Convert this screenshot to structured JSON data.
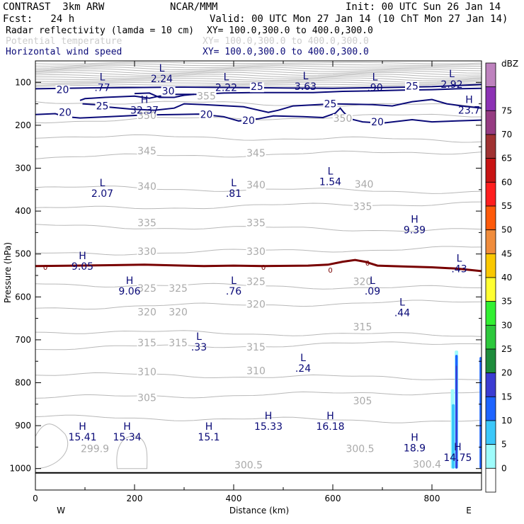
{
  "header": {
    "model": "CONTRAST  3km ARW",
    "forecast": "Fcst:   24 h",
    "center": "NCAR/MMM",
    "init": "Init: 00 UTC Sun 26 Jan 14",
    "valid": "Valid: 00 UTC Mon 27 Jan 14 (10 ChT Mon 27 Jan 14)",
    "fields": [
      {
        "name": "Radar reflectivity (lamda = 10 cm)",
        "xy": "XY= 100.0,300.0 to 400.0,300.0",
        "color": "#000000"
      },
      {
        "name": "Potential temperature",
        "xy": "XY= 100.0,300.0 to 400.0,300.0",
        "color": "#cccccc"
      },
      {
        "name": "Horizontal wind speed",
        "xy": "XY= 100.0,300.0 to 400.0,300.0",
        "color": "#0a0a78"
      }
    ]
  },
  "chart_data": {
    "type": "cross-section",
    "xlabel": "Distance (km)",
    "ylabel": "Pressure (hPa)",
    "xlim": [
      0,
      900
    ],
    "ylim": [
      1050,
      50
    ],
    "x_ticks": [
      "0",
      "200",
      "400",
      "600",
      "800"
    ],
    "x_tick_values": [
      0,
      200,
      400,
      600,
      800
    ],
    "y_ticks": [
      "100",
      "200",
      "300",
      "400",
      "500",
      "600",
      "700",
      "800",
      "900",
      "1000"
    ],
    "y_tick_values": [
      100,
      200,
      300,
      400,
      500,
      600,
      700,
      800,
      900,
      1000
    ],
    "west_label": "W",
    "east_label": "E",
    "colorbar": {
      "unit": "dBZ",
      "levels": [
        "0",
        "5",
        "10",
        "15",
        "20",
        "25",
        "30",
        "35",
        "40",
        "45",
        "50",
        "55",
        "60",
        "65",
        "70",
        "75"
      ],
      "colors": [
        "#ffffff",
        "#9ffcfc",
        "#3cc8fa",
        "#1e64ff",
        "#3c3cd2",
        "#1e8c3c",
        "#2dc83c",
        "#32f032",
        "#ffff32",
        "#fac800",
        "#f08c3c",
        "#ff5a0a",
        "#ff1e1e",
        "#c81414",
        "#a03232",
        "#963c82",
        "#8c32b4",
        "#be82be"
      ]
    },
    "theta_labels": [
      {
        "text": "355",
        "x": 345,
        "p": 140
      },
      {
        "text": "350",
        "x": 225,
        "p": 185
      },
      {
        "text": "350",
        "x": 620,
        "p": 192
      },
      {
        "text": "345",
        "x": 225,
        "p": 268
      },
      {
        "text": "345",
        "x": 445,
        "p": 273
      },
      {
        "text": "340",
        "x": 225,
        "p": 350
      },
      {
        "text": "340",
        "x": 445,
        "p": 347
      },
      {
        "text": "340",
        "x": 663,
        "p": 345
      },
      {
        "text": "335",
        "x": 660,
        "p": 397
      },
      {
        "text": "335",
        "x": 225,
        "p": 435
      },
      {
        "text": "335",
        "x": 445,
        "p": 435
      },
      {
        "text": "330",
        "x": 225,
        "p": 502
      },
      {
        "text": "330",
        "x": 445,
        "p": 502
      },
      {
        "text": "325",
        "x": 225,
        "p": 588
      },
      {
        "text": "325",
        "x": 288,
        "p": 588
      },
      {
        "text": "325",
        "x": 445,
        "p": 572
      },
      {
        "text": "320",
        "x": 225,
        "p": 643
      },
      {
        "text": "320",
        "x": 288,
        "p": 643
      },
      {
        "text": "320",
        "x": 445,
        "p": 625
      },
      {
        "text": "320",
        "x": 660,
        "p": 572
      },
      {
        "text": "315",
        "x": 225,
        "p": 715
      },
      {
        "text": "315",
        "x": 288,
        "p": 715
      },
      {
        "text": "315",
        "x": 445,
        "p": 725
      },
      {
        "text": "315",
        "x": 660,
        "p": 678
      },
      {
        "text": "310",
        "x": 225,
        "p": 783
      },
      {
        "text": "310",
        "x": 445,
        "p": 780
      },
      {
        "text": "305",
        "x": 225,
        "p": 843
      },
      {
        "text": "305",
        "x": 660,
        "p": 850
      },
      {
        "text": "299.9",
        "x": 120,
        "p": 962
      },
      {
        "text": "300.5",
        "x": 430,
        "p": 1000
      },
      {
        "text": "300.5",
        "x": 655,
        "p": 962
      },
      {
        "text": "300.4",
        "x": 790,
        "p": 998
      }
    ],
    "wind_labels": [
      {
        "text": "20",
        "x": 55,
        "p": 125
      },
      {
        "text": "30",
        "x": 268,
        "p": 128
      },
      {
        "text": "25",
        "x": 447,
        "p": 118
      },
      {
        "text": "25",
        "x": 760,
        "p": 117
      },
      {
        "text": "25",
        "x": 135,
        "p": 163
      },
      {
        "text": "25",
        "x": 595,
        "p": 158
      },
      {
        "text": "20",
        "x": 60,
        "p": 178
      },
      {
        "text": "20",
        "x": 345,
        "p": 183
      },
      {
        "text": "20",
        "x": 430,
        "p": 197
      },
      {
        "text": "20",
        "x": 690,
        "p": 200
      }
    ],
    "zero_labels": [
      {
        "text": "0",
        "x": 20,
        "p": 530
      },
      {
        "text": "0",
        "x": 460,
        "p": 530
      },
      {
        "text": "0",
        "x": 595,
        "p": 537
      },
      {
        "text": "0",
        "x": 670,
        "p": 520
      }
    ],
    "extrema": [
      {
        "type": "L",
        "value": "2.24",
        "x": 255,
        "p": 75
      },
      {
        "type": "L",
        "value": ".77",
        "x": 135,
        "p": 95
      },
      {
        "type": "L",
        "value": "2.22",
        "x": 385,
        "p": 95
      },
      {
        "type": "L",
        "value": "3.63",
        "x": 545,
        "p": 93
      },
      {
        "type": "L",
        "value": ".90",
        "x": 685,
        "p": 95
      },
      {
        "type": "L",
        "value": "2.92",
        "x": 840,
        "p": 88
      },
      {
        "type": "H",
        "value": "32.37",
        "x": 220,
        "p": 148
      },
      {
        "type": "H",
        "value": "23.7",
        "x": 875,
        "p": 148
      },
      {
        "type": "L",
        "value": "2.07",
        "x": 135,
        "p": 342
      },
      {
        "type": "L",
        "value": ".81",
        "x": 400,
        "p": 342
      },
      {
        "type": "L",
        "value": "1.54",
        "x": 595,
        "p": 315
      },
      {
        "type": "H",
        "value": "9.39",
        "x": 765,
        "p": 427
      },
      {
        "type": "H",
        "value": "9.05",
        "x": 95,
        "p": 512
      },
      {
        "type": "L",
        "value": ".43",
        "x": 855,
        "p": 518
      },
      {
        "type": "H",
        "value": "9.06",
        "x": 190,
        "p": 570
      },
      {
        "type": "L",
        "value": ".76",
        "x": 400,
        "p": 570
      },
      {
        "type": "L",
        "value": ".09",
        "x": 680,
        "p": 570
      },
      {
        "type": "L",
        "value": ".44",
        "x": 740,
        "p": 620
      },
      {
        "type": "L",
        "value": ".33",
        "x": 330,
        "p": 700
      },
      {
        "type": "L",
        "value": ".24",
        "x": 540,
        "p": 750
      },
      {
        "type": "H",
        "value": "15.33",
        "x": 470,
        "p": 885
      },
      {
        "type": "H",
        "value": "16.18",
        "x": 595,
        "p": 885
      },
      {
        "type": "H",
        "value": "15.41",
        "x": 95,
        "p": 910
      },
      {
        "type": "H",
        "value": "15.34",
        "x": 185,
        "p": 910
      },
      {
        "type": "H",
        "value": "15.1",
        "x": 350,
        "p": 910
      },
      {
        "type": "H",
        "value": "18.9",
        "x": 765,
        "p": 935
      },
      {
        "type": "H",
        "value": "14.75",
        "x": 852,
        "p": 958
      }
    ],
    "zero_wind_line": [
      [
        0,
        528
      ],
      [
        80,
        527
      ],
      [
        150,
        526
      ],
      [
        220,
        525
      ],
      [
        300,
        527
      ],
      [
        340,
        528
      ],
      [
        400,
        527
      ],
      [
        460,
        528
      ],
      [
        550,
        527
      ],
      [
        590,
        525
      ],
      [
        620,
        518
      ],
      [
        645,
        514
      ],
      [
        665,
        518
      ],
      [
        690,
        527
      ],
      [
        740,
        529
      ],
      [
        800,
        531
      ],
      [
        850,
        534
      ],
      [
        900,
        540
      ]
    ],
    "wind20_top_line": [
      [
        0,
        115
      ],
      [
        100,
        113
      ],
      [
        200,
        112
      ],
      [
        300,
        111
      ],
      [
        400,
        112
      ],
      [
        500,
        113
      ],
      [
        600,
        114
      ],
      [
        700,
        112
      ],
      [
        800,
        110
      ],
      [
        900,
        105
      ]
    ],
    "wind20_low_line": [
      [
        0,
        175
      ],
      [
        40,
        173
      ],
      [
        60,
        180
      ],
      [
        90,
        183
      ],
      [
        150,
        180
      ],
      [
        220,
        176
      ],
      [
        280,
        175
      ],
      [
        330,
        174
      ],
      [
        380,
        180
      ],
      [
        410,
        190
      ],
      [
        450,
        185
      ],
      [
        480,
        178
      ],
      [
        540,
        180
      ],
      [
        580,
        182
      ],
      [
        605,
        172
      ],
      [
        615,
        160
      ],
      [
        622,
        170
      ],
      [
        635,
        185
      ],
      [
        660,
        192
      ],
      [
        700,
        195
      ],
      [
        760,
        187
      ],
      [
        800,
        192
      ],
      [
        850,
        190
      ],
      [
        900,
        188
      ]
    ],
    "wind25_line": [
      [
        90,
        142
      ],
      [
        100,
        138
      ],
      [
        140,
        135
      ],
      [
        200,
        132
      ],
      [
        230,
        137
      ],
      [
        250,
        132
      ],
      [
        285,
        128
      ],
      [
        330,
        128
      ],
      [
        380,
        125
      ],
      [
        440,
        124
      ],
      [
        500,
        124
      ],
      [
        560,
        124
      ],
      [
        620,
        121
      ],
      [
        680,
        120
      ],
      [
        740,
        118
      ],
      [
        800,
        117
      ],
      [
        850,
        115
      ],
      [
        900,
        114
      ]
    ],
    "wind30_line": [
      [
        200,
        126
      ],
      [
        230,
        125
      ],
      [
        250,
        135
      ],
      [
        280,
        135
      ],
      [
        300,
        130
      ],
      [
        320,
        128
      ]
    ],
    "wind_bottom25_line": [
      [
        95,
        150
      ],
      [
        120,
        152
      ],
      [
        150,
        158
      ],
      [
        190,
        162
      ],
      [
        240,
        165
      ],
      [
        280,
        160
      ],
      [
        300,
        150
      ],
      [
        340,
        152
      ],
      [
        420,
        157
      ],
      [
        470,
        170
      ],
      [
        490,
        165
      ],
      [
        520,
        155
      ],
      [
        600,
        150
      ],
      [
        680,
        152
      ],
      [
        720,
        155
      ],
      [
        760,
        145
      ],
      [
        800,
        140
      ],
      [
        830,
        150
      ],
      [
        860,
        155
      ],
      [
        900,
        160
      ]
    ],
    "radar_cells": [
      {
        "x1": 838,
        "x2": 845,
        "p1": 815,
        "p2": 1000,
        "dbz": 5
      },
      {
        "x1": 840,
        "x2": 846,
        "p1": 850,
        "p2": 1000,
        "dbz": 10
      },
      {
        "x1": 846,
        "x2": 853,
        "p1": 725,
        "p2": 1000,
        "dbz": 5
      },
      {
        "x1": 847,
        "x2": 852,
        "p1": 735,
        "p2": 1000,
        "dbz": 15
      },
      {
        "x1": 848,
        "x2": 851,
        "p1": 760,
        "p2": 1000,
        "dbz": 20
      },
      {
        "x1": 896,
        "x2": 900,
        "p1": 740,
        "p2": 1000,
        "dbz": 15
      }
    ]
  }
}
